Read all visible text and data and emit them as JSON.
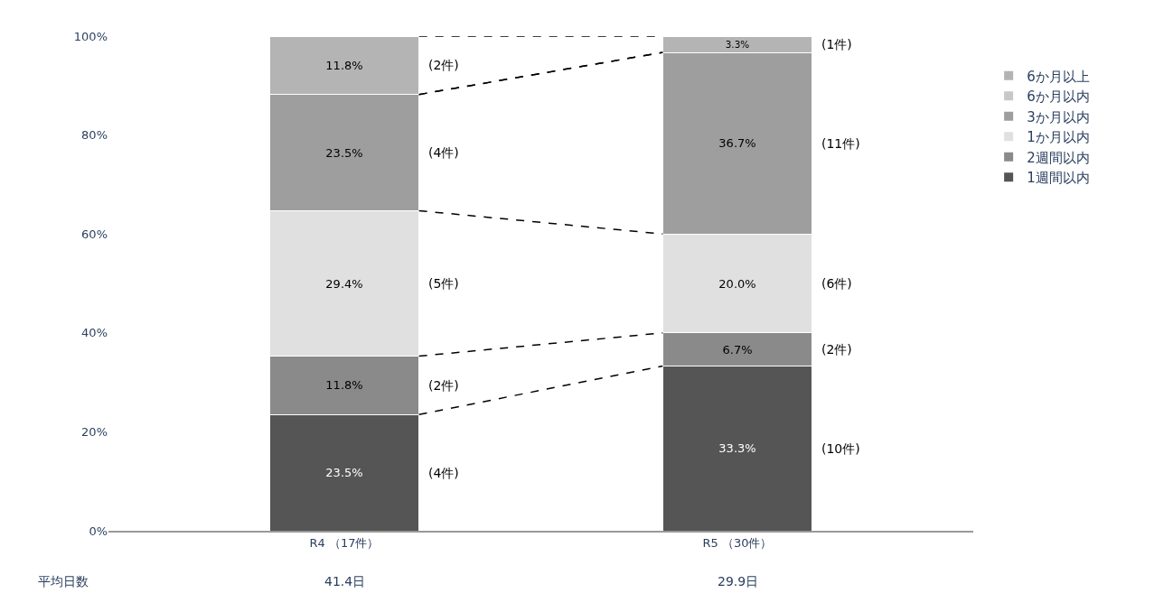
{
  "chart_data": {
    "type": "bar",
    "stacked": true,
    "categories": [
      "R4 （17件）",
      "R5 （30件）"
    ],
    "series": [
      {
        "name": "1週間以内",
        "color": "#555555",
        "values": [
          23.5,
          33.3
        ],
        "value_labels": [
          "23.5%",
          "33.3%"
        ]
      },
      {
        "name": "2週間以内",
        "color": "#8a8a8a",
        "values": [
          11.8,
          6.7
        ],
        "value_labels": [
          "11.8%",
          "6.7%"
        ]
      },
      {
        "name": "1か月以内",
        "color": "#e0e0e0",
        "values": [
          29.4,
          20.0
        ],
        "value_labels": [
          "29.4%",
          "20.0%"
        ]
      },
      {
        "name": "3か月以内",
        "color": "#9e9e9e",
        "values": [
          23.5,
          36.7
        ],
        "value_labels": [
          "23.5%",
          "36.7%"
        ]
      },
      {
        "name": "6か月以内",
        "color": "#c8c8c8",
        "values": [
          0,
          0
        ],
        "value_labels": [
          null,
          null
        ]
      },
      {
        "name": "6か月以上",
        "color": "#b4b4b4",
        "values": [
          11.8,
          3.3
        ],
        "value_labels": [
          "11.8%",
          "3.3%"
        ]
      }
    ],
    "ylim": [
      0,
      100
    ],
    "yticks": [
      {
        "value": 0,
        "label": "0%"
      },
      {
        "value": 20,
        "label": "20%"
      },
      {
        "value": 40,
        "label": "40%"
      },
      {
        "value": 60,
        "label": "60%"
      },
      {
        "value": 80,
        "label": "80%"
      },
      {
        "value": 100,
        "label": "100%"
      }
    ],
    "legend": "right",
    "grid": false,
    "line_style": "dashed",
    "annotations": [
      "(4件)",
      "(2件)",
      "(5件)",
      "(4件)",
      "(2件)",
      "(10件)",
      "(2件)",
      "(6件)",
      "(11件)",
      "(1件)",
      "平均日数",
      "41.4日",
      "29.9日"
    ]
  }
}
